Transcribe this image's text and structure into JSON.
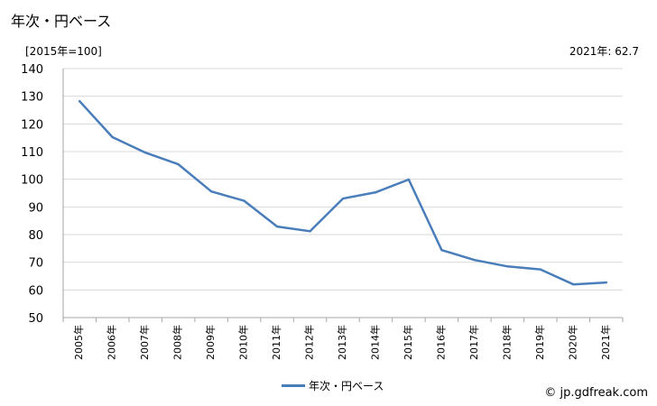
{
  "header": {
    "title": "年次・円ベース",
    "unit": "[2015年=100]",
    "latest": "2021年: 62.7"
  },
  "legend": {
    "label": "年次・円ベース"
  },
  "credit": "© jp.gdfreak.com",
  "colors": {
    "series": "#4a7ebb",
    "grid": "#d9d9d9",
    "axis": "#a6a6a6"
  },
  "chart_data": {
    "type": "line",
    "x": [
      "2005年",
      "2006年",
      "2007年",
      "2008年",
      "2009年",
      "2010年",
      "2011年",
      "2012年",
      "2013年",
      "2014年",
      "2015年",
      "2016年",
      "2017年",
      "2018年",
      "2019年",
      "2020年",
      "2021年"
    ],
    "series": [
      {
        "name": "年次・円ベース",
        "values": [
          128.2,
          115.2,
          109.6,
          105.4,
          95.6,
          92.2,
          82.9,
          81.2,
          93.0,
          95.3,
          99.9,
          74.4,
          70.8,
          68.5,
          67.4,
          62.0,
          62.7
        ]
      }
    ],
    "yticks": [
      50,
      60,
      70,
      80,
      90,
      100,
      110,
      120,
      130,
      140
    ],
    "ylim": [
      50,
      140
    ],
    "grid": true,
    "legend_position": "bottom"
  }
}
